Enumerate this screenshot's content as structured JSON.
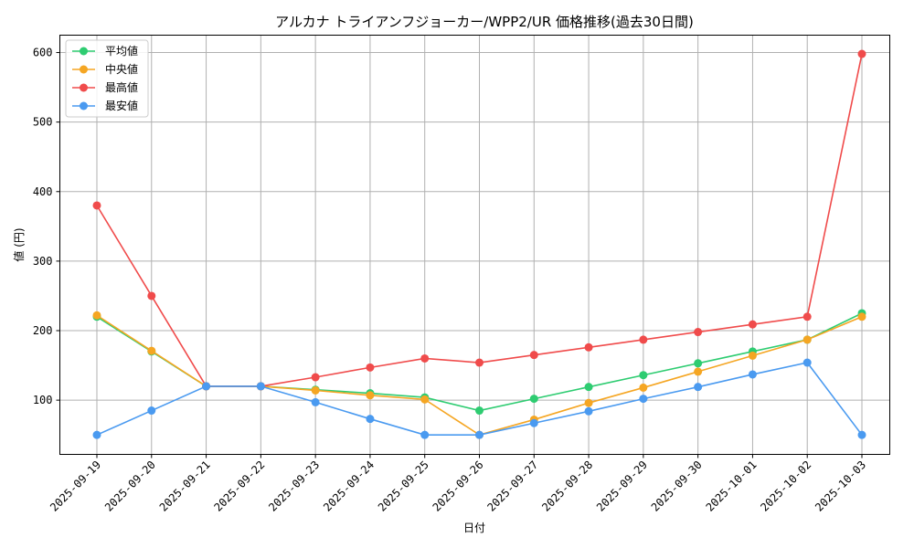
{
  "chart_data": {
    "type": "line",
    "title": "アルカナ トライアンフジョーカー/WPP2/UR 価格推移(過去30日間)",
    "xlabel": "日付",
    "ylabel": "値 (円)",
    "ylim": [
      22,
      625
    ],
    "yticks": [
      100,
      200,
      300,
      400,
      500,
      600
    ],
    "grid": true,
    "legend_position": "top-left",
    "categories": [
      "2025-09-19",
      "2025-09-20",
      "2025-09-21",
      "2025-09-22",
      "2025-09-23",
      "2025-09-24",
      "2025-09-25",
      "2025-09-26",
      "2025-09-27",
      "2025-09-28",
      "2025-09-29",
      "2025-09-30",
      "2025-10-01",
      "2025-10-02",
      "2025-10-03"
    ],
    "series": [
      {
        "name": "平均値",
        "color": "#2ecc71",
        "values": [
          220,
          170,
          120,
          120,
          115,
          110,
          104,
          85,
          102,
          119,
          136,
          153,
          170,
          187,
          225
        ]
      },
      {
        "name": "中央値",
        "color": "#f5a623",
        "values": [
          222,
          171,
          120,
          120,
          114,
          107,
          101,
          50,
          72,
          96,
          118,
          141,
          164,
          187,
          220
        ]
      },
      {
        "name": "最高値",
        "color": "#f04b4b",
        "values": [
          380,
          250,
          120,
          120,
          133,
          147,
          160,
          154,
          165,
          176,
          187,
          198,
          209,
          220,
          598
        ]
      },
      {
        "name": "最安値",
        "color": "#4a9af0",
        "values": [
          50,
          85,
          120,
          120,
          97,
          73,
          50,
          50,
          67,
          84,
          102,
          119,
          137,
          154,
          50
        ]
      }
    ]
  }
}
